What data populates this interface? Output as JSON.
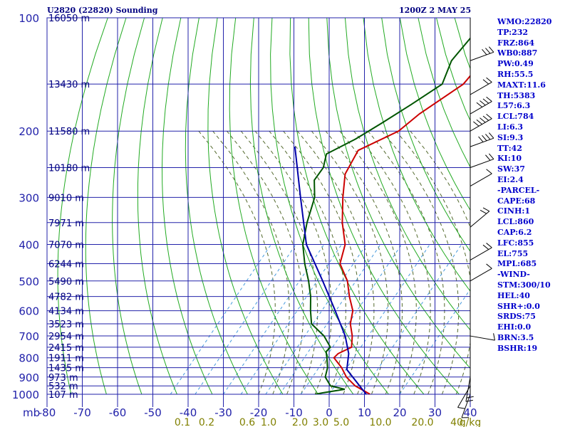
{
  "header": {
    "station": "U2820 (22820) Sounding",
    "time": "1200Z  2 MAY 25"
  },
  "indices": [
    "WMO:22820",
    "TP:232",
    "FRZ:864",
    "WB0:887",
    "PW:0.49",
    "RH:55.5",
    "MAXT:11.6",
    "TH:5383",
    "L57:6.3",
    "LCL:784",
    "LI:6.3",
    "SI:9.3",
    "TT:42",
    "KI:10",
    "SW:37",
    "EI:2.4",
    "-PARCEL-",
    "CAPE:68",
    "CINH:1",
    "LCL:860",
    "CAP:6.2",
    "LFC:855",
    "EL:755",
    "MPL:685",
    "-WIND-",
    "STM:300/10",
    "HEL:40",
    "SHR+:0.0",
    "SRDS:75",
    "EHI:0.0",
    "BRN:3.5",
    "BSHR:19"
  ],
  "chart_data": {
    "type": "line",
    "title": "U2820 (22820) Sounding",
    "subtitle": "1200Z  2 MAY 25",
    "pressure_levels": [
      100,
      200,
      300,
      400,
      500,
      600,
      700,
      800,
      900,
      1000
    ],
    "pressure_unit_label": "mb",
    "x_ticks": [
      -80,
      -70,
      -60,
      -50,
      -40,
      -30,
      -20,
      -10,
      0,
      10,
      20,
      30,
      40
    ],
    "xlim": [
      -80,
      40
    ],
    "ylim": [
      1000,
      100
    ],
    "y_scale": "log",
    "mixing_ratio_labels": [
      "0.1",
      "0.2",
      "0.6",
      "1.0",
      "2.0",
      "3.0",
      "5.0",
      "10.0",
      "20.0",
      "40"
    ],
    "mixing_ratio_unit": "g/kg",
    "height_labels": [
      {
        "p": 100,
        "label": "16050 m"
      },
      {
        "p": 150,
        "label": "13430 m"
      },
      {
        "p": 200,
        "label": "11580 m"
      },
      {
        "p": 250,
        "label": "10180 m"
      },
      {
        "p": 300,
        "label": "9010 m"
      },
      {
        "p": 350,
        "label": "7971 m"
      },
      {
        "p": 400,
        "label": "7070 m"
      },
      {
        "p": 450,
        "label": "6244 m"
      },
      {
        "p": 500,
        "label": "5490 m"
      },
      {
        "p": 550,
        "label": "4782 m"
      },
      {
        "p": 600,
        "label": "4134 m"
      },
      {
        "p": 650,
        "label": "3523 m"
      },
      {
        "p": 700,
        "label": "2954 m"
      },
      {
        "p": 750,
        "label": "2415 m"
      },
      {
        "p": 800,
        "label": "1911 m"
      },
      {
        "p": 850,
        "label": "1435 m"
      },
      {
        "p": 900,
        "label": "973 m"
      },
      {
        "p": 950,
        "label": "532 m"
      },
      {
        "p": 1000,
        "label": "107 m"
      }
    ],
    "series": [
      {
        "color": "#cc0000",
        "points": [
          [
            100,
            -53
          ],
          [
            150,
            -50
          ],
          [
            180,
            -54
          ],
          [
            200,
            -55
          ],
          [
            225,
            -61
          ],
          [
            260,
            -58
          ],
          [
            300,
            -52
          ],
          [
            350,
            -45
          ],
          [
            400,
            -38
          ],
          [
            450,
            -34
          ],
          [
            500,
            -27
          ],
          [
            550,
            -22
          ],
          [
            600,
            -17
          ],
          [
            650,
            -14
          ],
          [
            700,
            -10
          ],
          [
            750,
            -7
          ],
          [
            780,
            -9
          ],
          [
            800,
            -9
          ],
          [
            850,
            -4
          ],
          [
            900,
            0
          ],
          [
            950,
            5
          ],
          [
            1000,
            11.6
          ]
        ]
      },
      {
        "color": "#005500",
        "points": [
          [
            100,
            -62
          ],
          [
            130,
            -60
          ],
          [
            150,
            -56
          ],
          [
            170,
            -59
          ],
          [
            190,
            -62
          ],
          [
            210,
            -65
          ],
          [
            230,
            -69
          ],
          [
            250,
            -66
          ],
          [
            270,
            -65
          ],
          [
            300,
            -60
          ],
          [
            350,
            -55
          ],
          [
            400,
            -50
          ],
          [
            450,
            -44
          ],
          [
            500,
            -38
          ],
          [
            550,
            -33
          ],
          [
            600,
            -29
          ],
          [
            650,
            -25
          ],
          [
            700,
            -18
          ],
          [
            750,
            -13
          ],
          [
            770,
            -13
          ],
          [
            800,
            -11
          ],
          [
            850,
            -8
          ],
          [
            900,
            -6
          ],
          [
            950,
            -2
          ],
          [
            970,
            3
          ],
          [
            990,
            -2
          ],
          [
            1000,
            -4
          ]
        ]
      },
      {
        "color": "#0000aa",
        "points": [
          [
            220,
            -80
          ],
          [
            300,
            -64
          ],
          [
            400,
            -49
          ],
          [
            500,
            -34
          ],
          [
            600,
            -22
          ],
          [
            700,
            -12
          ],
          [
            780,
            -6
          ],
          [
            860,
            -2
          ],
          [
            1000,
            10.5
          ]
        ]
      }
    ],
    "wind_barbs": [
      {
        "p": 130,
        "dir": 250,
        "kt": 25
      },
      {
        "p": 160,
        "dir": 240,
        "kt": 20
      },
      {
        "p": 180,
        "dir": 240,
        "kt": 35
      },
      {
        "p": 200,
        "dir": 240,
        "kt": 45
      },
      {
        "p": 220,
        "dir": 250,
        "kt": 35
      },
      {
        "p": 250,
        "dir": 250,
        "kt": 15
      },
      {
        "p": 280,
        "dir": 240,
        "kt": 10
      },
      {
        "p": 360,
        "dir": 230,
        "kt": 15
      },
      {
        "p": 440,
        "dir": 240,
        "kt": 20
      },
      {
        "p": 500,
        "dir": 240,
        "kt": 10
      },
      {
        "p": 700,
        "dir": 280,
        "kt": 10
      },
      {
        "p": 900,
        "dir": 10,
        "kt": 15
      },
      {
        "p": 950,
        "dir": 30,
        "kt": 10
      },
      {
        "p": 1000,
        "dir": 20,
        "kt": 5
      }
    ],
    "grid": true
  }
}
